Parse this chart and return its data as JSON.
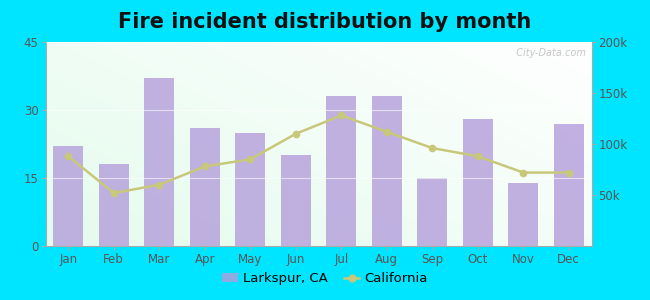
{
  "title": "Fire incident distribution by month",
  "months": [
    "Jan",
    "Feb",
    "Mar",
    "Apr",
    "May",
    "Jun",
    "Jul",
    "Aug",
    "Sep",
    "Oct",
    "Nov",
    "Dec"
  ],
  "larkspur_values": [
    22,
    18,
    37,
    26,
    25,
    20,
    33,
    33,
    15,
    28,
    14,
    27
  ],
  "california_values": [
    88000,
    52000,
    60000,
    78000,
    85000,
    110000,
    128000,
    112000,
    96000,
    88000,
    72000,
    72000
  ],
  "bar_color": "#b39ddb",
  "line_color": "#c8c87a",
  "bar_alpha": 0.8,
  "background_outer": "#00e5ff",
  "ylim_left": [
    0,
    45
  ],
  "ylim_right": [
    0,
    200000
  ],
  "yticks_left": [
    0,
    15,
    30,
    45
  ],
  "yticks_right": [
    50000,
    100000,
    150000,
    200000
  ],
  "ytick_labels_right": [
    "50k",
    "100k",
    "150k",
    "200k"
  ],
  "title_fontsize": 15,
  "tick_fontsize": 8.5,
  "legend_fontsize": 9.5,
  "watermark": "  City-Data.com"
}
